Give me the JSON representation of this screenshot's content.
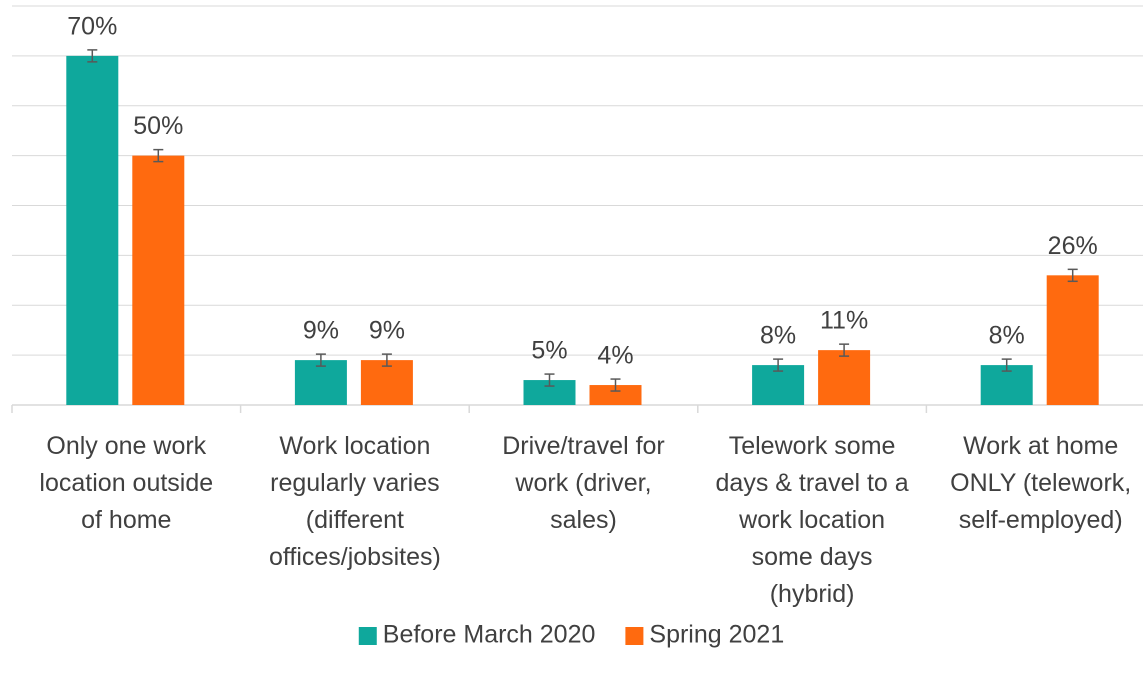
{
  "chart_data": {
    "type": "bar",
    "categories": [
      "Only one work\nlocation outside\nof home",
      "Work location\nregularly varies\n(different\noffices/jobsites)",
      "Drive/travel for\nwork (driver,\nsales)",
      "Telework some\ndays & travel to a\nwork location\nsome days\n(hybrid)",
      "Work at home\nONLY (telework,\nself-employed)"
    ],
    "series": [
      {
        "name": "Before March 2020",
        "color": "#0fa89c",
        "values": [
          70,
          9,
          5,
          8,
          8
        ],
        "value_labels": [
          "70%",
          "9%",
          "5%",
          "8%",
          "8%"
        ],
        "errors": [
          1.2,
          1.2,
          1.2,
          1.2,
          1.2
        ]
      },
      {
        "name": "Spring 2021",
        "color": "#ff6a0f",
        "values": [
          50,
          9,
          4,
          11,
          26
        ],
        "value_labels": [
          "50%",
          "9%",
          "4%",
          "11%",
          "26%"
        ],
        "errors": [
          1.2,
          1.2,
          1.2,
          1.2,
          1.2
        ]
      }
    ],
    "ylim": [
      0,
      80
    ],
    "yticks": [
      0,
      10,
      20,
      30,
      40,
      50,
      60,
      70,
      80
    ],
    "grid": true,
    "legend": "bottom"
  }
}
